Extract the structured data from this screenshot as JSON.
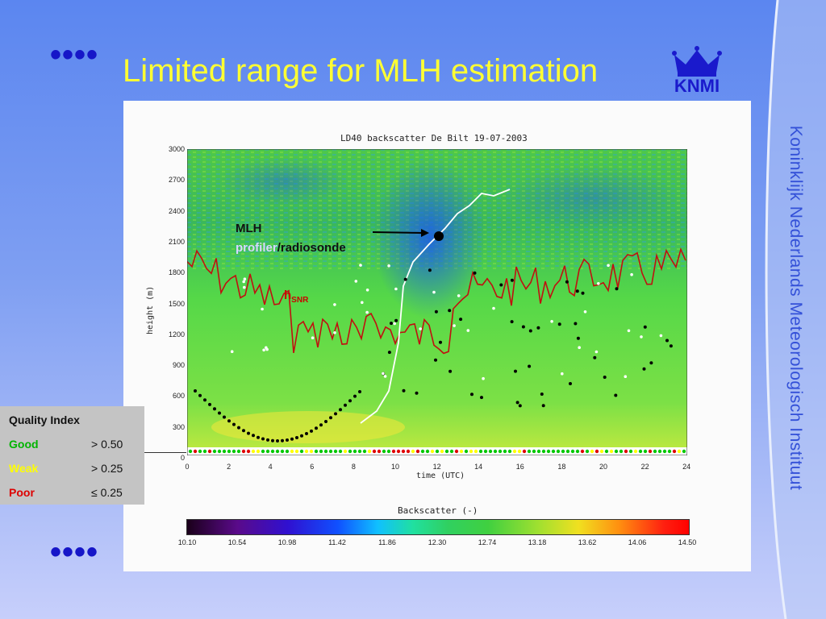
{
  "slide": {
    "title": "Limited range for MLH estimation",
    "bullet": "••••",
    "side_label": "Koninklijk Nederlands Meteorologisch Instituut",
    "logo_text": "KNMI"
  },
  "figure": {
    "title": "LD40 backscatter De Bilt 19-07-2003",
    "ylabel": "height (m)",
    "xlabel": "time (UTC)",
    "colorbar_label": "Backscatter (-)",
    "y_ticks": [
      "3000",
      "2700",
      "2400",
      "2100",
      "1800",
      "1500",
      "1200",
      "900",
      "600",
      "300",
      "0"
    ],
    "x_ticks": [
      "0",
      "2",
      "4",
      "6",
      "8",
      "10",
      "12",
      "14",
      "16",
      "18",
      "20",
      "22",
      "24"
    ],
    "colorbar_ticks": [
      "10.10",
      "10.54",
      "10.98",
      "11.42",
      "11.86",
      "12.30",
      "12.74",
      "13.18",
      "13.62",
      "14.06",
      "14.50"
    ],
    "annotation_mlh": "MLH",
    "annotation_profiler": "profiler",
    "annotation_slash": "/",
    "annotation_radiosonde": "radiosonde",
    "annotation_h": "h",
    "annotation_snr": "SNR"
  },
  "quality": {
    "title": "Quality Index",
    "rows": [
      {
        "label": "Good",
        "value": "> 0.50",
        "color": "#00b400"
      },
      {
        "label": "Weak",
        "value": "> 0.25",
        "color": "#ffff00"
      },
      {
        "label": "Poor",
        "value": "≤ 0.25",
        "color": "#dd0000"
      }
    ]
  },
  "colors": {
    "title": "#ffff33",
    "bullet": "#1616c8",
    "side_text": "#3350d8",
    "hsnr": "#c00000"
  }
}
